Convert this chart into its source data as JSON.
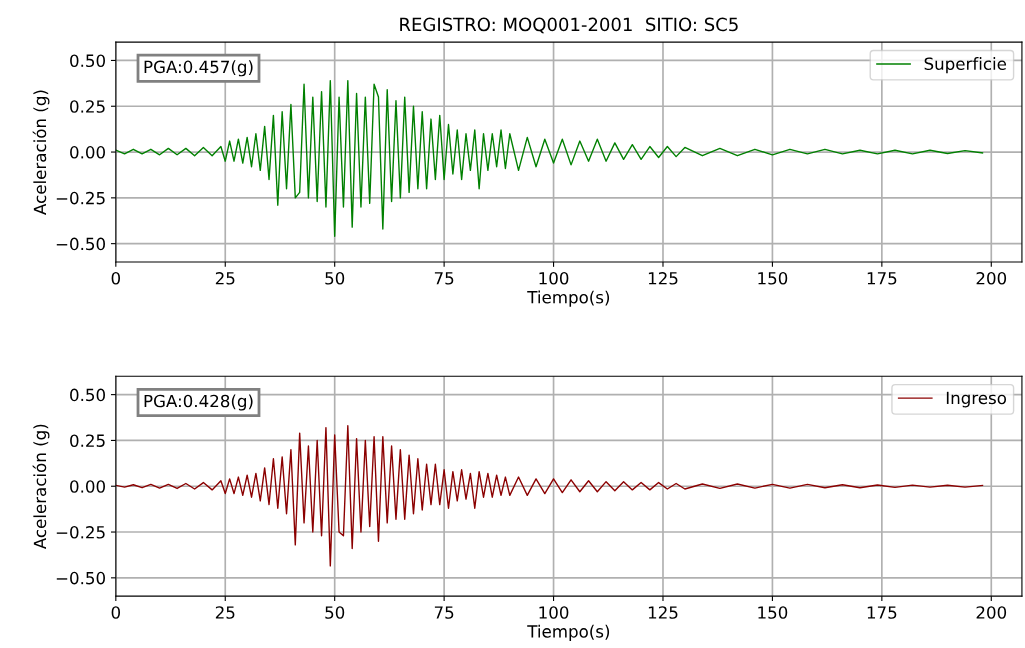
{
  "chart_data": [
    {
      "type": "line",
      "title": "REGISTRO: MOQ001-2001  SITIO: SC5",
      "xlabel": "Tiempo(s)",
      "ylabel": "Aceleración (g)",
      "annotations": [
        "PGA:0.457(g)"
      ],
      "legend": "top right",
      "grid": true,
      "xlim": [
        0,
        207
      ],
      "ylim": [
        -0.6,
        0.6
      ],
      "xticks": [
        0,
        25,
        50,
        75,
        100,
        125,
        150,
        175,
        200
      ],
      "yticks": [
        {
          "value": -0.5,
          "label": "−0.50"
        },
        {
          "value": -0.25,
          "label": "−0.25"
        },
        {
          "value": 0,
          "label": "0.00"
        },
        {
          "value": 0.25,
          "label": "0.25"
        },
        {
          "value": 0.5,
          "label": "0.50"
        }
      ],
      "series": [
        {
          "name": "Superficie",
          "color": "#008000",
          "x": [
            0,
            2,
            4,
            6,
            8,
            10,
            12,
            14,
            16,
            18,
            20,
            22,
            24,
            25,
            26,
            27,
            28,
            29,
            30,
            31,
            32,
            33,
            34,
            35,
            36,
            37,
            38,
            39,
            40,
            41,
            42,
            43,
            44,
            45,
            46,
            47,
            48,
            49,
            50,
            51,
            52,
            53,
            54,
            55,
            56,
            57,
            58,
            59,
            60,
            61,
            62,
            63,
            64,
            65,
            66,
            67,
            68,
            69,
            70,
            71,
            72,
            73,
            74,
            75,
            76,
            77,
            78,
            79,
            80,
            81,
            82,
            83,
            84,
            85,
            86,
            87,
            88,
            89,
            90,
            92,
            94,
            96,
            98,
            100,
            102,
            104,
            106,
            108,
            110,
            112,
            114,
            116,
            118,
            120,
            122,
            124,
            126,
            128,
            130,
            134,
            138,
            142,
            146,
            150,
            154,
            158,
            162,
            166,
            170,
            174,
            178,
            182,
            186,
            190,
            194,
            198
          ],
          "values": [
            0.01,
            -0.01,
            0.015,
            -0.01,
            0.015,
            -0.015,
            0.02,
            -0.015,
            0.02,
            -0.02,
            0.025,
            -0.02,
            0.03,
            -0.05,
            0.06,
            -0.05,
            0.07,
            -0.06,
            0.08,
            -0.08,
            0.1,
            -0.1,
            0.14,
            -0.15,
            0.2,
            -0.29,
            0.22,
            -0.2,
            0.26,
            -0.25,
            -0.22,
            0.37,
            -0.25,
            0.3,
            -0.27,
            0.33,
            -0.3,
            0.39,
            -0.46,
            0.3,
            -0.3,
            0.39,
            -0.41,
            0.32,
            -0.3,
            0.3,
            -0.28,
            0.37,
            0.3,
            -0.42,
            0.34,
            -0.27,
            0.28,
            -0.25,
            0.3,
            -0.22,
            0.25,
            -0.2,
            0.22,
            -0.2,
            0.18,
            -0.15,
            0.2,
            -0.15,
            0.15,
            -0.12,
            0.12,
            -0.15,
            0.1,
            -0.1,
            0.12,
            -0.2,
            0.1,
            -0.1,
            0.1,
            -0.08,
            0.12,
            -0.09,
            0.1,
            -0.1,
            0.08,
            -0.08,
            0.07,
            -0.06,
            0.07,
            -0.07,
            0.06,
            -0.05,
            0.07,
            -0.05,
            0.05,
            -0.04,
            0.04,
            -0.04,
            0.03,
            -0.03,
            0.03,
            -0.025,
            0.025,
            -0.02,
            0.02,
            -0.02,
            0.015,
            -0.015,
            0.015,
            -0.01,
            0.015,
            -0.01,
            0.01,
            -0.01,
            0.01,
            -0.01,
            0.01,
            -0.008,
            0.008,
            -0.005
          ]
        }
      ]
    },
    {
      "type": "line",
      "xlabel": "Tiempo(s)",
      "ylabel": "Aceleración (g)",
      "annotations": [
        "PGA:0.428(g)"
      ],
      "legend": "top right",
      "grid": true,
      "xlim": [
        0,
        207
      ],
      "ylim": [
        -0.6,
        0.6
      ],
      "xticks": [
        0,
        25,
        50,
        75,
        100,
        125,
        150,
        175,
        200
      ],
      "yticks": [
        {
          "value": -0.5,
          "label": "−0.50"
        },
        {
          "value": -0.25,
          "label": "−0.25"
        },
        {
          "value": 0,
          "label": "0.00"
        },
        {
          "value": 0.25,
          "label": "0.25"
        },
        {
          "value": 0.5,
          "label": "0.50"
        }
      ],
      "series": [
        {
          "name": "Ingreso",
          "color": "#8b0000",
          "x": [
            0,
            2,
            4,
            6,
            8,
            10,
            12,
            14,
            16,
            18,
            20,
            22,
            24,
            25,
            26,
            27,
            28,
            29,
            30,
            31,
            32,
            33,
            34,
            35,
            36,
            37,
            38,
            39,
            40,
            41,
            42,
            43,
            44,
            45,
            46,
            47,
            48,
            49,
            50,
            51,
            52,
            53,
            54,
            55,
            56,
            57,
            58,
            59,
            60,
            61,
            62,
            63,
            64,
            65,
            66,
            67,
            68,
            69,
            70,
            71,
            72,
            73,
            74,
            75,
            76,
            77,
            78,
            79,
            80,
            81,
            82,
            83,
            84,
            85,
            86,
            87,
            88,
            89,
            90,
            92,
            94,
            96,
            98,
            100,
            102,
            104,
            106,
            108,
            110,
            112,
            114,
            116,
            118,
            120,
            122,
            124,
            126,
            128,
            130,
            134,
            138,
            142,
            146,
            150,
            154,
            158,
            162,
            166,
            170,
            174,
            178,
            182,
            186,
            190,
            194,
            198
          ],
          "values": [
            0.005,
            -0.005,
            0.008,
            -0.008,
            0.01,
            -0.01,
            0.01,
            -0.012,
            0.015,
            -0.015,
            0.02,
            -0.02,
            0.03,
            -0.04,
            0.04,
            -0.04,
            0.05,
            -0.05,
            0.06,
            -0.06,
            0.07,
            -0.08,
            0.1,
            -0.1,
            0.15,
            -0.12,
            0.16,
            -0.15,
            0.2,
            -0.32,
            0.29,
            -0.2,
            0.22,
            -0.25,
            0.25,
            -0.27,
            0.32,
            -0.435,
            0.28,
            -0.25,
            -0.27,
            0.33,
            -0.34,
            0.26,
            -0.25,
            0.25,
            -0.22,
            0.27,
            -0.3,
            0.27,
            -0.2,
            0.22,
            -0.18,
            0.2,
            -0.18,
            0.17,
            -0.15,
            0.15,
            -0.13,
            0.12,
            -0.1,
            0.12,
            -0.1,
            0.09,
            -0.12,
            0.08,
            -0.08,
            0.09,
            -0.07,
            0.07,
            -0.12,
            0.08,
            -0.06,
            0.07,
            -0.06,
            0.06,
            -0.05,
            0.05,
            -0.05,
            0.05,
            -0.05,
            0.04,
            -0.04,
            0.04,
            -0.035,
            0.035,
            -0.03,
            0.03,
            -0.03,
            0.025,
            -0.025,
            0.025,
            -0.02,
            0.02,
            -0.02,
            0.02,
            -0.015,
            0.015,
            -0.015,
            0.012,
            -0.012,
            0.012,
            -0.01,
            0.01,
            -0.01,
            0.01,
            -0.008,
            0.008,
            -0.008,
            0.007,
            -0.006,
            0.006,
            -0.005,
            0.005,
            -0.005,
            0.004
          ]
        }
      ]
    }
  ]
}
